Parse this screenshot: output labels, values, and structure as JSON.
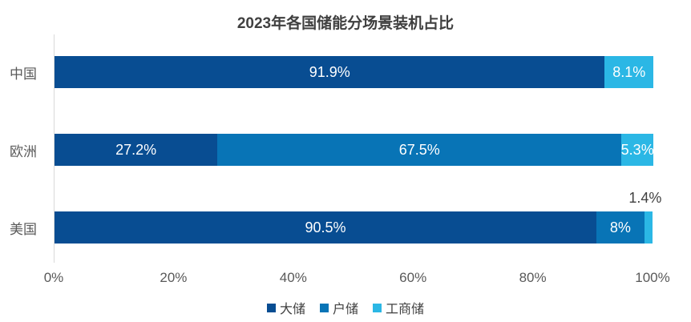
{
  "chart_data": {
    "type": "bar",
    "orientation": "horizontal",
    "stacked": true,
    "title": "2023年各国储能分场景装机占比",
    "categories": [
      "中国",
      "欧洲",
      "美国"
    ],
    "series": [
      {
        "name": "大储",
        "color": "#084D92",
        "values": [
          91.9,
          27.2,
          90.5
        ],
        "labels": [
          "91.9%",
          "27.2%",
          "90.5%"
        ]
      },
      {
        "name": "户储",
        "color": "#0874B6",
        "values": [
          0,
          67.5,
          8.0
        ],
        "labels": [
          "",
          "67.5%",
          "8%"
        ]
      },
      {
        "name": "工商储",
        "color": "#2BB7E5",
        "values": [
          8.1,
          5.3,
          1.4
        ],
        "labels": [
          "8.1%",
          "5.3%",
          "1.4%"
        ]
      }
    ],
    "x_ticks": [
      "0%",
      "20%",
      "40%",
      "60%",
      "80%",
      "100%"
    ],
    "xlim": [
      0,
      100
    ],
    "grid": false,
    "legend_position": "bottom"
  },
  "colors": {
    "title_text": "#404040",
    "axis_text": "#595959",
    "axis_line": "#D9D9D9",
    "bar_label": "#FFFFFF"
  }
}
